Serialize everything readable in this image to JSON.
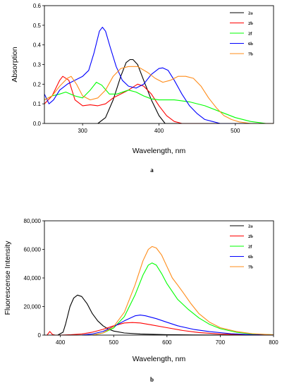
{
  "chart_data": [
    {
      "type": "line",
      "panel_label": "a",
      "xlabel": "Wavelength, nm",
      "ylabel": "Absorption",
      "xlim": [
        250,
        550
      ],
      "ylim": [
        0,
        0.6
      ],
      "xticks": [
        300,
        400,
        500
      ],
      "yticks": [
        0.0,
        0.1,
        0.2,
        0.3,
        0.4,
        0.5,
        0.6
      ],
      "ytick_labels": [
        "0.0",
        "0.1",
        "0.2",
        "0.3",
        "0.4",
        "0.5",
        "0.6"
      ],
      "grid": false,
      "legend_position": "top-right",
      "series": [
        {
          "name": "2a",
          "color": "#000000",
          "points": [
            [
              320,
              0
            ],
            [
              330,
              0.03
            ],
            [
              340,
              0.12
            ],
            [
              350,
              0.24
            ],
            [
              357,
              0.31
            ],
            [
              362,
              0.325
            ],
            [
              366,
              0.325
            ],
            [
              372,
              0.3
            ],
            [
              380,
              0.22
            ],
            [
              390,
              0.12
            ],
            [
              400,
              0.04
            ],
            [
              408,
              0
            ],
            [
              550,
              0
            ]
          ]
        },
        {
          "name": "2b",
          "color": "#ff0000",
          "points": [
            [
              250,
              0.1
            ],
            [
              260,
              0.14
            ],
            [
              270,
              0.22
            ],
            [
              274,
              0.24
            ],
            [
              282,
              0.22
            ],
            [
              290,
              0.12
            ],
            [
              300,
              0.09
            ],
            [
              310,
              0.095
            ],
            [
              320,
              0.09
            ],
            [
              330,
              0.1
            ],
            [
              340,
              0.13
            ],
            [
              350,
              0.15
            ],
            [
              360,
              0.17
            ],
            [
              372,
              0.2
            ],
            [
              380,
              0.19
            ],
            [
              390,
              0.15
            ],
            [
              400,
              0.09
            ],
            [
              410,
              0.04
            ],
            [
              420,
              0.01
            ],
            [
              430,
              0
            ],
            [
              550,
              0
            ]
          ]
        },
        {
          "name": "2f",
          "color": "#00ff00",
          "points": [
            [
              250,
              0.12
            ],
            [
              260,
              0.14
            ],
            [
              270,
              0.15
            ],
            [
              278,
              0.16
            ],
            [
              290,
              0.14
            ],
            [
              300,
              0.13
            ],
            [
              310,
              0.17
            ],
            [
              318,
              0.21
            ],
            [
              325,
              0.195
            ],
            [
              335,
              0.15
            ],
            [
              345,
              0.15
            ],
            [
              360,
              0.17
            ],
            [
              370,
              0.16
            ],
            [
              380,
              0.14
            ],
            [
              390,
              0.125
            ],
            [
              400,
              0.12
            ],
            [
              420,
              0.12
            ],
            [
              440,
              0.11
            ],
            [
              460,
              0.09
            ],
            [
              480,
              0.06
            ],
            [
              500,
              0.03
            ],
            [
              520,
              0.01
            ],
            [
              540,
              0
            ],
            [
              550,
              0
            ]
          ]
        },
        {
          "name": "6b",
          "color": "#0000ff",
          "points": [
            [
              250,
              0.15
            ],
            [
              256,
              0.1
            ],
            [
              262,
              0.12
            ],
            [
              270,
              0.17
            ],
            [
              280,
              0.2
            ],
            [
              290,
              0.22
            ],
            [
              300,
              0.24
            ],
            [
              308,
              0.27
            ],
            [
              315,
              0.36
            ],
            [
              322,
              0.47
            ],
            [
              326,
              0.49
            ],
            [
              330,
              0.47
            ],
            [
              336,
              0.39
            ],
            [
              344,
              0.29
            ],
            [
              352,
              0.22
            ],
            [
              360,
              0.19
            ],
            [
              370,
              0.18
            ],
            [
              380,
              0.2
            ],
            [
              390,
              0.25
            ],
            [
              400,
              0.28
            ],
            [
              405,
              0.283
            ],
            [
              412,
              0.27
            ],
            [
              420,
              0.22
            ],
            [
              430,
              0.15
            ],
            [
              440,
              0.09
            ],
            [
              450,
              0.05
            ],
            [
              460,
              0.02
            ],
            [
              470,
              0.01
            ],
            [
              480,
              0
            ],
            [
              550,
              0
            ]
          ]
        },
        {
          "name": "7b",
          "color": "#ff8c1a",
          "points": [
            [
              250,
              0.12
            ],
            [
              260,
              0.14
            ],
            [
              270,
              0.19
            ],
            [
              280,
              0.23
            ],
            [
              285,
              0.24
            ],
            [
              292,
              0.2
            ],
            [
              300,
              0.14
            ],
            [
              310,
              0.12
            ],
            [
              320,
              0.13
            ],
            [
              330,
              0.17
            ],
            [
              340,
              0.24
            ],
            [
              350,
              0.28
            ],
            [
              360,
              0.29
            ],
            [
              372,
              0.29
            ],
            [
              385,
              0.26
            ],
            [
              395,
              0.23
            ],
            [
              405,
              0.21
            ],
            [
              415,
              0.22
            ],
            [
              425,
              0.24
            ],
            [
              435,
              0.24
            ],
            [
              445,
              0.23
            ],
            [
              455,
              0.19
            ],
            [
              465,
              0.13
            ],
            [
              475,
              0.08
            ],
            [
              485,
              0.04
            ],
            [
              495,
              0.02
            ],
            [
              505,
              0.008
            ],
            [
              520,
              0
            ],
            [
              550,
              0
            ]
          ]
        }
      ]
    },
    {
      "type": "line",
      "panel_label": "b",
      "xlabel": "Wavelength, nm",
      "ylabel": "Fluorescense Intensity",
      "xlim": [
        370,
        800
      ],
      "ylim": [
        0,
        80000
      ],
      "xticks": [
        400,
        500,
        600,
        700,
        800
      ],
      "yticks": [
        0,
        20000,
        40000,
        60000,
        80000
      ],
      "ytick_labels": [
        "0",
        "20,000",
        "40,000",
        "60,000",
        "80,000"
      ],
      "grid": false,
      "legend_position": "top-right",
      "series": [
        {
          "name": "2a",
          "color": "#000000",
          "points": [
            [
              395,
              0
            ],
            [
              405,
              2000
            ],
            [
              410,
              8000
            ],
            [
              418,
              20000
            ],
            [
              425,
              26000
            ],
            [
              432,
              28000
            ],
            [
              440,
              27000
            ],
            [
              450,
              22000
            ],
            [
              460,
              15000
            ],
            [
              470,
              10000
            ],
            [
              480,
              6500
            ],
            [
              490,
              4200
            ],
            [
              500,
              2800
            ],
            [
              520,
              1500
            ],
            [
              550,
              800
            ],
            [
              600,
              300
            ],
            [
              650,
              100
            ],
            [
              700,
              50
            ],
            [
              800,
              0
            ]
          ]
        },
        {
          "name": "2b",
          "color": "#ff0000",
          "points": [
            [
              375,
              0
            ],
            [
              380,
              2500
            ],
            [
              385,
              500
            ],
            [
              390,
              0
            ],
            [
              400,
              0
            ],
            [
              420,
              300
            ],
            [
              440,
              800
            ],
            [
              460,
              2000
            ],
            [
              480,
              4000
            ],
            [
              500,
              6500
            ],
            [
              520,
              8500
            ],
            [
              535,
              8800
            ],
            [
              550,
              8500
            ],
            [
              570,
              7200
            ],
            [
              600,
              5200
            ],
            [
              630,
              3200
            ],
            [
              660,
              1800
            ],
            [
              700,
              800
            ],
            [
              750,
              200
            ],
            [
              800,
              0
            ]
          ]
        },
        {
          "name": "2f",
          "color": "#00ff00",
          "points": [
            [
              460,
              0
            ],
            [
              480,
              1500
            ],
            [
              500,
              5000
            ],
            [
              520,
              13000
            ],
            [
              540,
              28000
            ],
            [
              555,
              42000
            ],
            [
              565,
              49000
            ],
            [
              572,
              50500
            ],
            [
              580,
              49000
            ],
            [
              590,
              43000
            ],
            [
              600,
              36000
            ],
            [
              620,
              25000
            ],
            [
              640,
              18000
            ],
            [
              660,
              12000
            ],
            [
              680,
              7500
            ],
            [
              700,
              4500
            ],
            [
              730,
              2000
            ],
            [
              760,
              800
            ],
            [
              800,
              200
            ]
          ]
        },
        {
          "name": "6b",
          "color": "#0000ff",
          "points": [
            [
              440,
              0
            ],
            [
              460,
              800
            ],
            [
              480,
              2500
            ],
            [
              500,
              6000
            ],
            [
              520,
              10000
            ],
            [
              540,
              13500
            ],
            [
              550,
              14000
            ],
            [
              560,
              13500
            ],
            [
              580,
              11500
            ],
            [
              600,
              9000
            ],
            [
              620,
              6500
            ],
            [
              650,
              4000
            ],
            [
              680,
              2400
            ],
            [
              720,
              1000
            ],
            [
              760,
              300
            ],
            [
              800,
              50
            ]
          ]
        },
        {
          "name": "7b",
          "color": "#ff8c1a",
          "points": [
            [
              460,
              0
            ],
            [
              480,
              1500
            ],
            [
              500,
              6000
            ],
            [
              520,
              16000
            ],
            [
              540,
              35000
            ],
            [
              555,
              52000
            ],
            [
              565,
              60000
            ],
            [
              572,
              62000
            ],
            [
              580,
              61000
            ],
            [
              590,
              56000
            ],
            [
              600,
              48000
            ],
            [
              610,
              40000
            ],
            [
              620,
              35000
            ],
            [
              630,
              30000
            ],
            [
              645,
              22000
            ],
            [
              660,
              15000
            ],
            [
              680,
              9000
            ],
            [
              700,
              5200
            ],
            [
              730,
              2500
            ],
            [
              760,
              1000
            ],
            [
              800,
              200
            ]
          ]
        }
      ]
    }
  ]
}
